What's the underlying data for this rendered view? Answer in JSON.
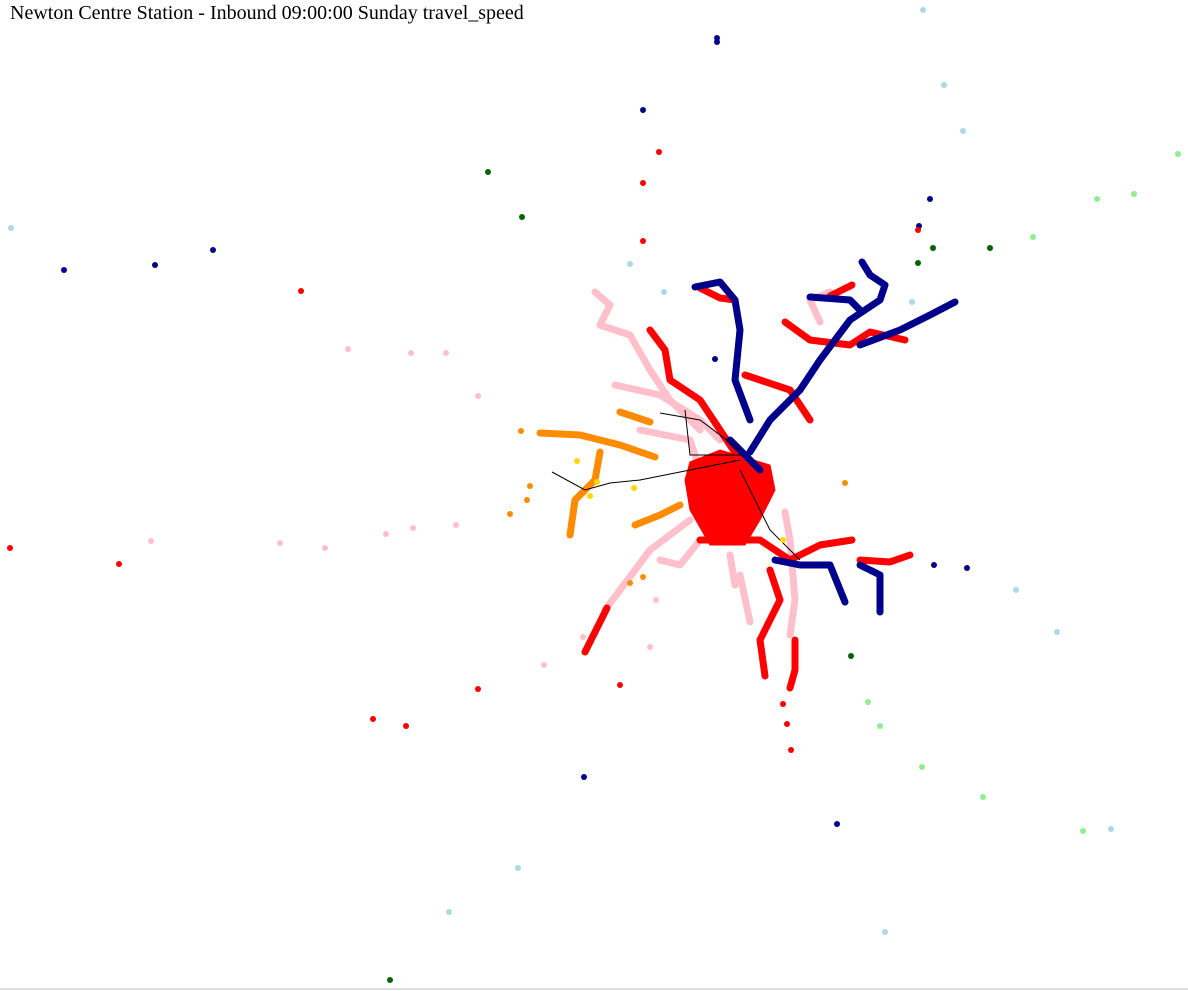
{
  "title": "Newton Centre Station - Inbound 09:00:00 Sunday travel_speed"
}
